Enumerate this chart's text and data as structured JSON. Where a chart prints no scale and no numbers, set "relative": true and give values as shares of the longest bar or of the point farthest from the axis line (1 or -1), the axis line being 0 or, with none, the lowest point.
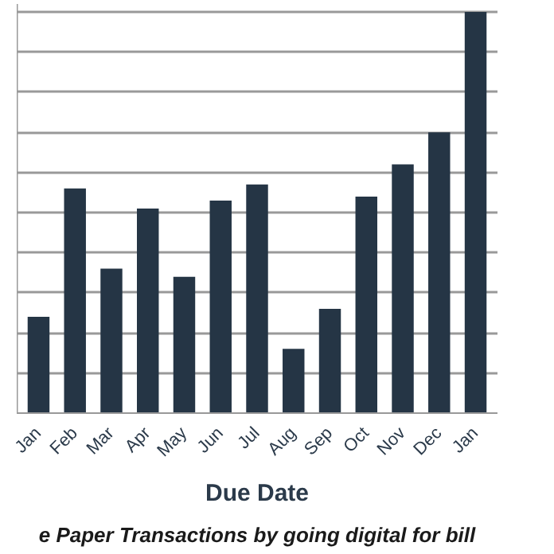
{
  "chart_data": {
    "type": "bar",
    "xlabel": "Due Date",
    "categories": [
      "Jan",
      "Feb",
      "Mar",
      "Apr",
      "May",
      "Jun",
      "Jul",
      "Aug",
      "Sep",
      "Oct",
      "Nov",
      "Dec",
      "Jan"
    ],
    "values": [
      0.24,
      0.56,
      0.36,
      0.51,
      0.34,
      0.53,
      0.57,
      0.16,
      0.26,
      0.54,
      0.62,
      0.7,
      1
    ],
    "color": "#253545",
    "relative": true,
    "grid": "y",
    "annotations": [
      "e Paper Transactions by going digital for bill"
    ]
  }
}
